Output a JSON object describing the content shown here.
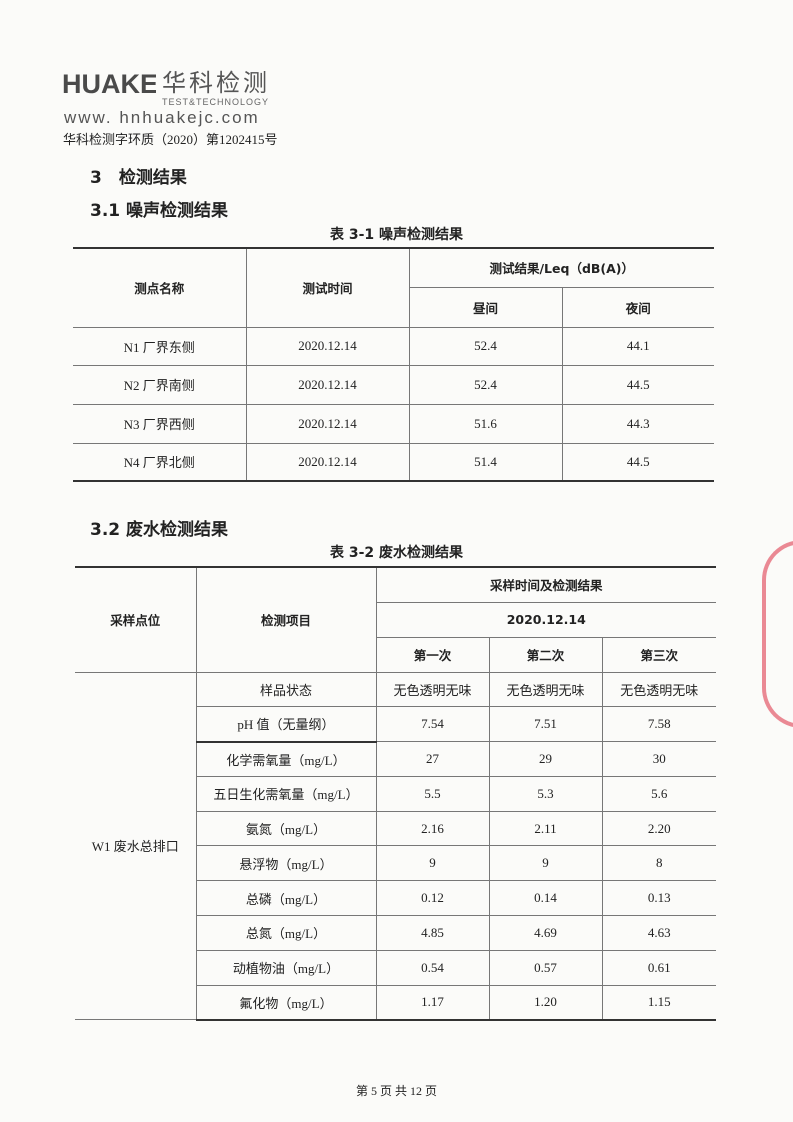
{
  "header": {
    "logo_text": "HUAKE",
    "logo_cn": "华科检测",
    "logo_en": "TEST&TECHNOLOGY",
    "website": "www. hnhuakejc.com",
    "doc_number": "华科检测字环质（2020）第1202415号"
  },
  "section": {
    "title": "3　检测结果"
  },
  "noise": {
    "heading": "3.1  噪声检测结果",
    "caption": "表 3-1  噪声检测结果",
    "headers": {
      "point": "测点名称",
      "time": "测试时间",
      "result": "测试结果/Leq（dB(A)）",
      "day": "昼间",
      "night": "夜间"
    },
    "rows": [
      {
        "point": "N1  厂界东侧",
        "time": "2020.12.14",
        "day": "52.4",
        "night": "44.1"
      },
      {
        "point": "N2  厂界南侧",
        "time": "2020.12.14",
        "day": "52.4",
        "night": "44.5"
      },
      {
        "point": "N3  厂界西侧",
        "time": "2020.12.14",
        "day": "51.6",
        "night": "44.3"
      },
      {
        "point": "N4  厂界北侧",
        "time": "2020.12.14",
        "day": "51.4",
        "night": "44.5"
      }
    ]
  },
  "wastewater": {
    "heading": "3.2  废水检测结果",
    "caption": "表 3-2  废水检测结果",
    "headers": {
      "site": "采样点位",
      "item": "检测项目",
      "result": "采样时间及检测结果",
      "date": "2020.12.14",
      "first": "第一次",
      "second": "第二次",
      "third": "第三次"
    },
    "site": "W1  废水总排口",
    "rows": [
      {
        "item": "样品状态",
        "v": [
          "无色透明无味",
          "无色透明无味",
          "无色透明无味"
        ]
      },
      {
        "item": "pH 值（无量纲）",
        "v": [
          "7.54",
          "7.51",
          "7.58"
        ]
      },
      {
        "item": "化学需氧量（mg/L）",
        "v": [
          "27",
          "29",
          "30"
        ]
      },
      {
        "item": "五日生化需氧量（mg/L）",
        "v": [
          "5.5",
          "5.3",
          "5.6"
        ]
      },
      {
        "item": "氨氮（mg/L）",
        "v": [
          "2.16",
          "2.11",
          "2.20"
        ]
      },
      {
        "item": "悬浮物（mg/L）",
        "v": [
          "9",
          "9",
          "8"
        ]
      },
      {
        "item": "总磷（mg/L）",
        "v": [
          "0.12",
          "0.14",
          "0.13"
        ]
      },
      {
        "item": "总氮（mg/L）",
        "v": [
          "4.85",
          "4.69",
          "4.63"
        ]
      },
      {
        "item": "动植物油（mg/L）",
        "v": [
          "0.54",
          "0.57",
          "0.61"
        ]
      },
      {
        "item": "氟化物（mg/L）",
        "v": [
          "1.17",
          "1.20",
          "1.15"
        ]
      }
    ]
  },
  "footer": {
    "page": "第 5 页 共 12 页"
  },
  "colors": {
    "stamp": "#e45a6a",
    "text": "#222222"
  }
}
